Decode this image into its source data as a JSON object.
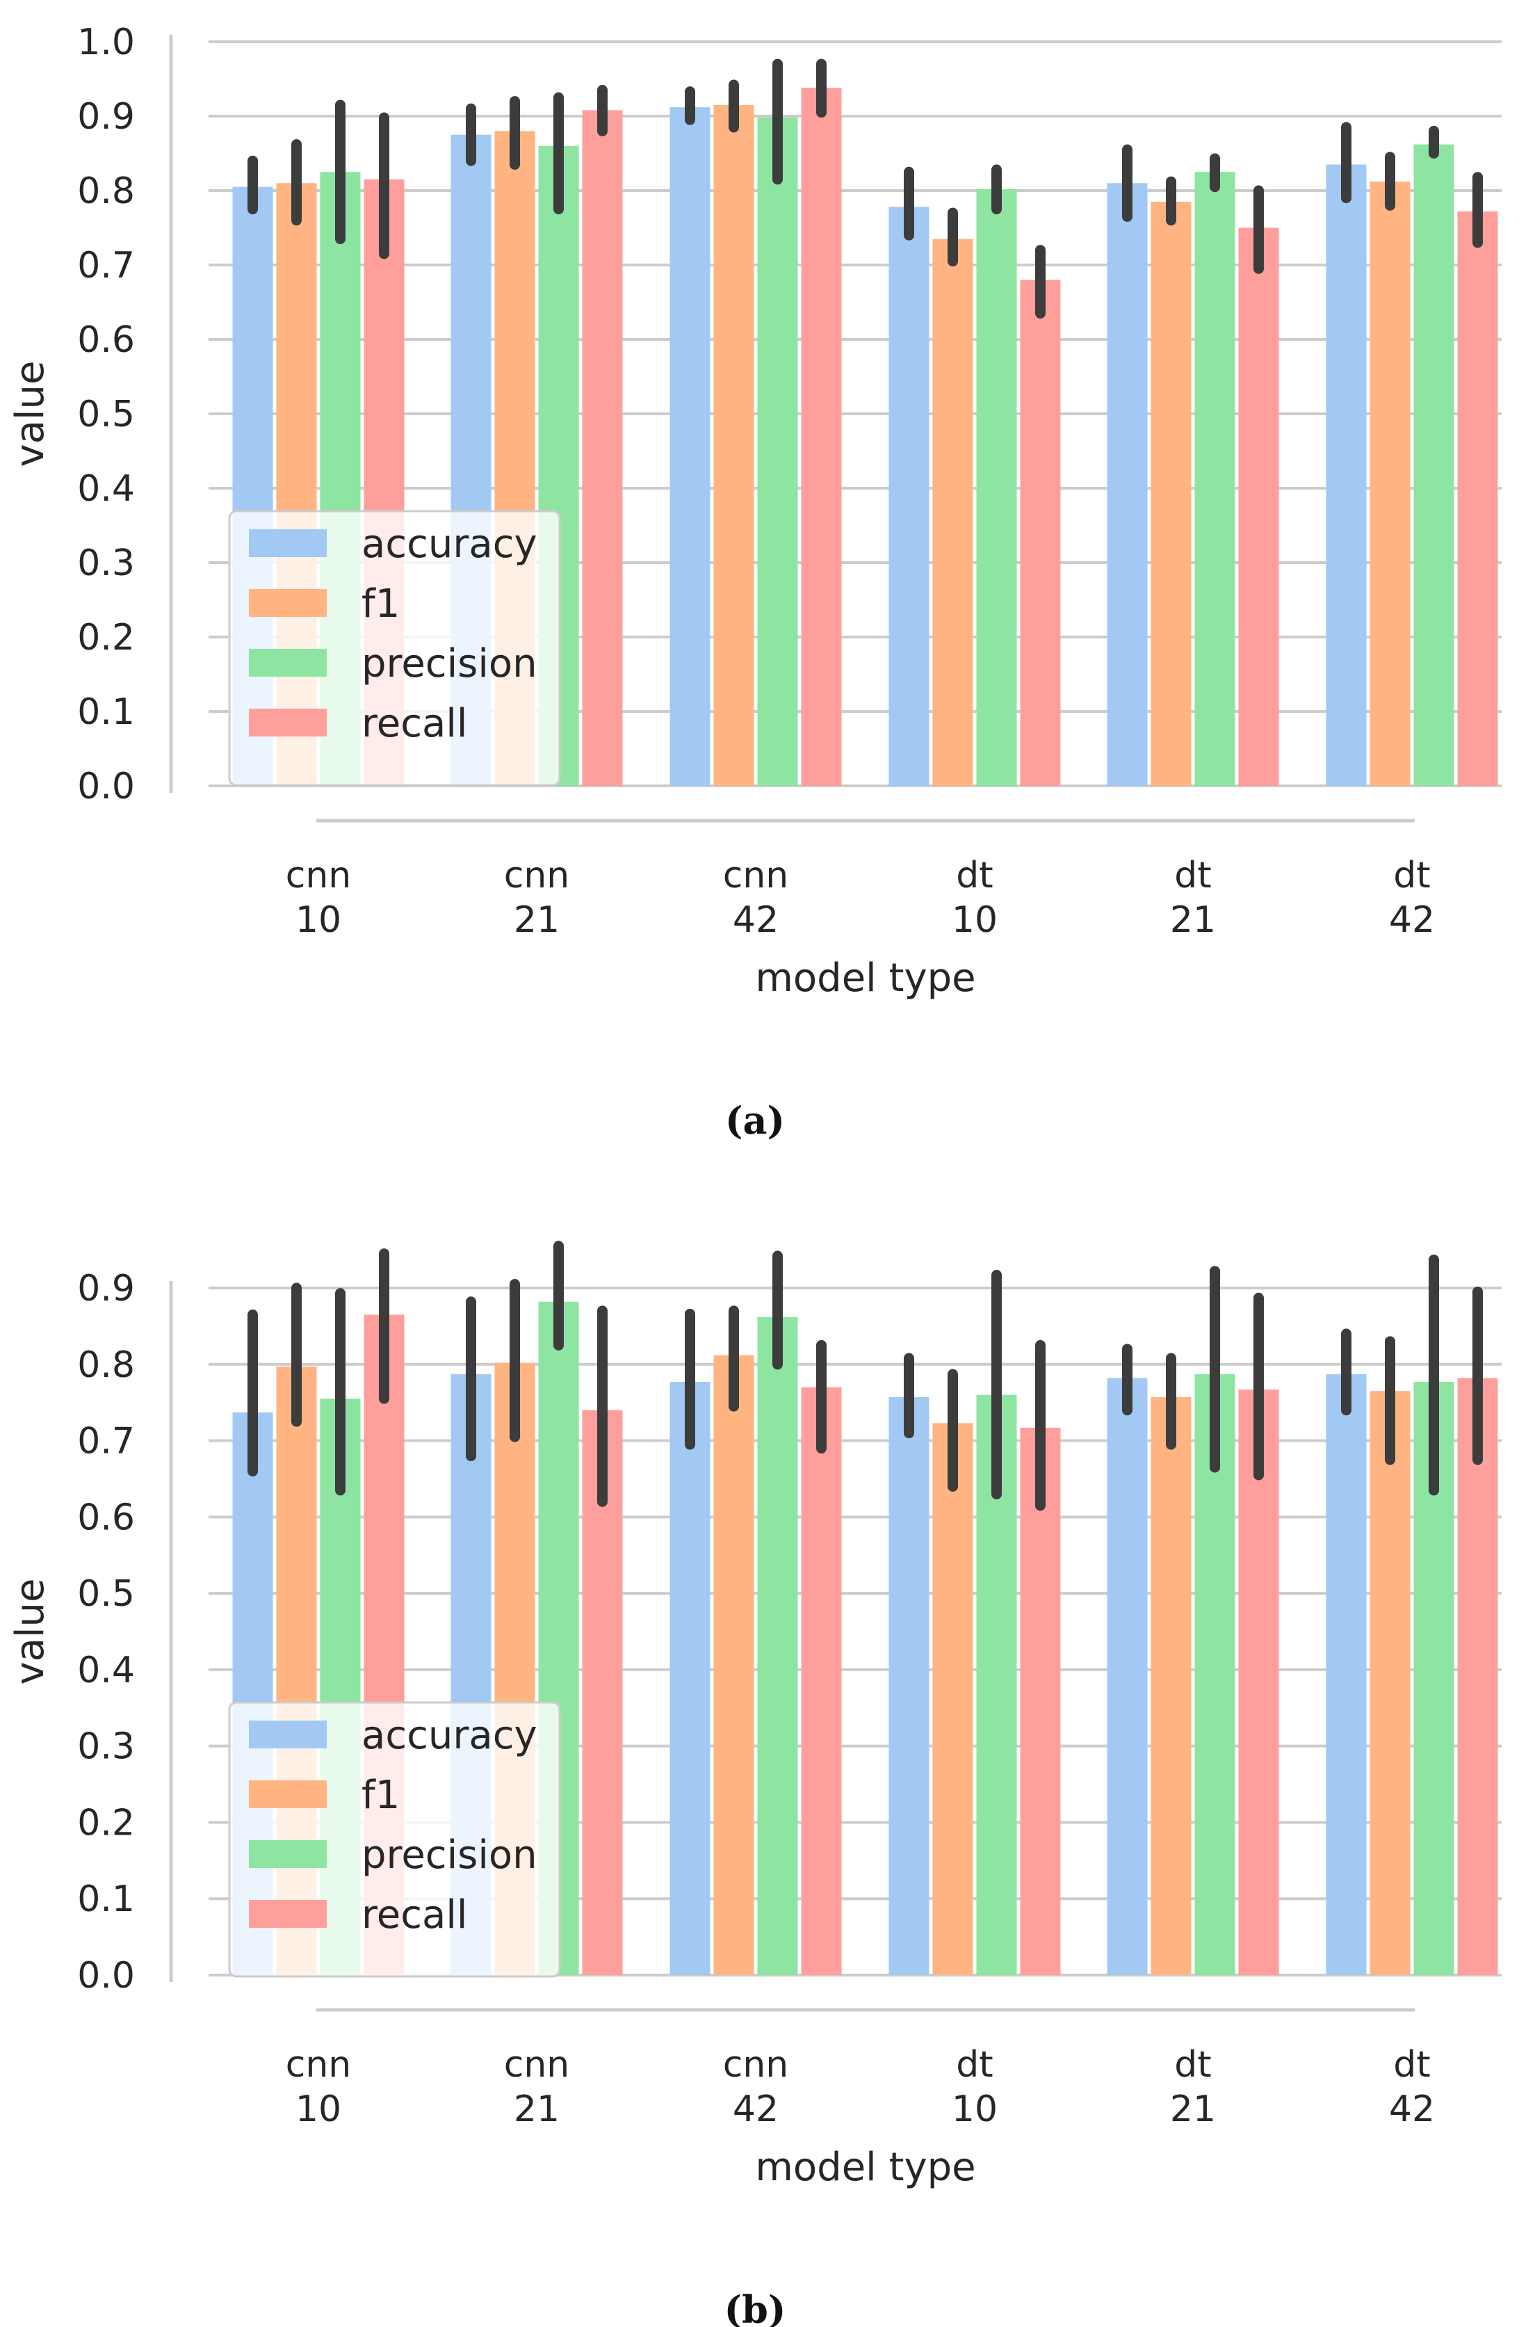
{
  "colors": {
    "accuracy": "#a1c9f4",
    "f1": "#ffb482",
    "precision": "#8de5a1",
    "recall": "#ff9f9b",
    "errorbar": "#3c3c3c",
    "grid": "#cccccc",
    "text": "#262626"
  },
  "chart_data": [
    {
      "type": "bar",
      "caption": "(a)",
      "xlabel": "model type",
      "ylabel": "value",
      "ylim": [
        0,
        1.0
      ],
      "yticks": [
        "0.0",
        "0.1",
        "0.2",
        "0.3",
        "0.4",
        "0.5",
        "0.6",
        "0.7",
        "0.8",
        "0.9",
        "1.0"
      ],
      "grid": true,
      "legend_position": "lower-left",
      "categories": [
        {
          "line1": "cnn",
          "line2": "10"
        },
        {
          "line1": "cnn",
          "line2": "21"
        },
        {
          "line1": "cnn",
          "line2": "42"
        },
        {
          "line1": "dt",
          "line2": "10"
        },
        {
          "line1": "dt",
          "line2": "21"
        },
        {
          "line1": "dt",
          "line2": "42"
        }
      ],
      "series": [
        {
          "name": "accuracy",
          "values": [
            0.805,
            0.875,
            0.912,
            0.778,
            0.81,
            0.835
          ],
          "err_low": [
            0.775,
            0.84,
            0.895,
            0.74,
            0.765,
            0.79
          ],
          "err_high": [
            0.84,
            0.91,
            0.933,
            0.825,
            0.855,
            0.885
          ]
        },
        {
          "name": "f1",
          "values": [
            0.81,
            0.88,
            0.915,
            0.735,
            0.785,
            0.812
          ],
          "err_low": [
            0.76,
            0.835,
            0.885,
            0.705,
            0.76,
            0.78
          ],
          "err_high": [
            0.862,
            0.92,
            0.942,
            0.77,
            0.812,
            0.845
          ]
        },
        {
          "name": "precision",
          "values": [
            0.825,
            0.86,
            0.898,
            0.802,
            0.825,
            0.862
          ],
          "err_low": [
            0.735,
            0.775,
            0.815,
            0.775,
            0.805,
            0.85
          ],
          "err_high": [
            0.915,
            0.925,
            0.97,
            0.828,
            0.843,
            0.88
          ]
        },
        {
          "name": "recall",
          "values": [
            0.815,
            0.908,
            0.938,
            0.68,
            0.75,
            0.772
          ],
          "err_low": [
            0.715,
            0.88,
            0.905,
            0.635,
            0.695,
            0.73
          ],
          "err_high": [
            0.898,
            0.935,
            0.97,
            0.72,
            0.8,
            0.818
          ]
        }
      ]
    },
    {
      "type": "bar",
      "caption": "(b)",
      "xlabel": "model type",
      "ylabel": "value",
      "ylim": [
        0,
        0.9
      ],
      "yticks": [
        "0.0",
        "0.1",
        "0.2",
        "0.3",
        "0.4",
        "0.5",
        "0.6",
        "0.7",
        "0.8",
        "0.9"
      ],
      "grid": true,
      "legend_position": "lower-left",
      "categories": [
        {
          "line1": "cnn",
          "line2": "10"
        },
        {
          "line1": "cnn",
          "line2": "21"
        },
        {
          "line1": "cnn",
          "line2": "42"
        },
        {
          "line1": "dt",
          "line2": "10"
        },
        {
          "line1": "dt",
          "line2": "21"
        },
        {
          "line1": "dt",
          "line2": "42"
        }
      ],
      "series": [
        {
          "name": "accuracy",
          "values": [
            0.737,
            0.787,
            0.777,
            0.757,
            0.782,
            0.787
          ],
          "err_low": [
            0.66,
            0.68,
            0.695,
            0.71,
            0.74,
            0.74
          ],
          "err_high": [
            0.865,
            0.882,
            0.866,
            0.808,
            0.82,
            0.84
          ]
        },
        {
          "name": "f1",
          "values": [
            0.797,
            0.802,
            0.812,
            0.723,
            0.757,
            0.765
          ],
          "err_low": [
            0.725,
            0.705,
            0.745,
            0.64,
            0.695,
            0.675
          ],
          "err_high": [
            0.9,
            0.905,
            0.87,
            0.787,
            0.808,
            0.83
          ]
        },
        {
          "name": "precision",
          "values": [
            0.755,
            0.882,
            0.862,
            0.76,
            0.787,
            0.777
          ],
          "err_low": [
            0.635,
            0.825,
            0.8,
            0.63,
            0.665,
            0.635
          ],
          "err_high": [
            0.893,
            0.955,
            0.942,
            0.917,
            0.922,
            0.937
          ]
        },
        {
          "name": "recall",
          "values": [
            0.865,
            0.74,
            0.77,
            0.717,
            0.767,
            0.782
          ],
          "err_low": [
            0.755,
            0.62,
            0.69,
            0.615,
            0.655,
            0.675
          ],
          "err_high": [
            0.945,
            0.87,
            0.825,
            0.825,
            0.887,
            0.895
          ]
        }
      ]
    }
  ]
}
